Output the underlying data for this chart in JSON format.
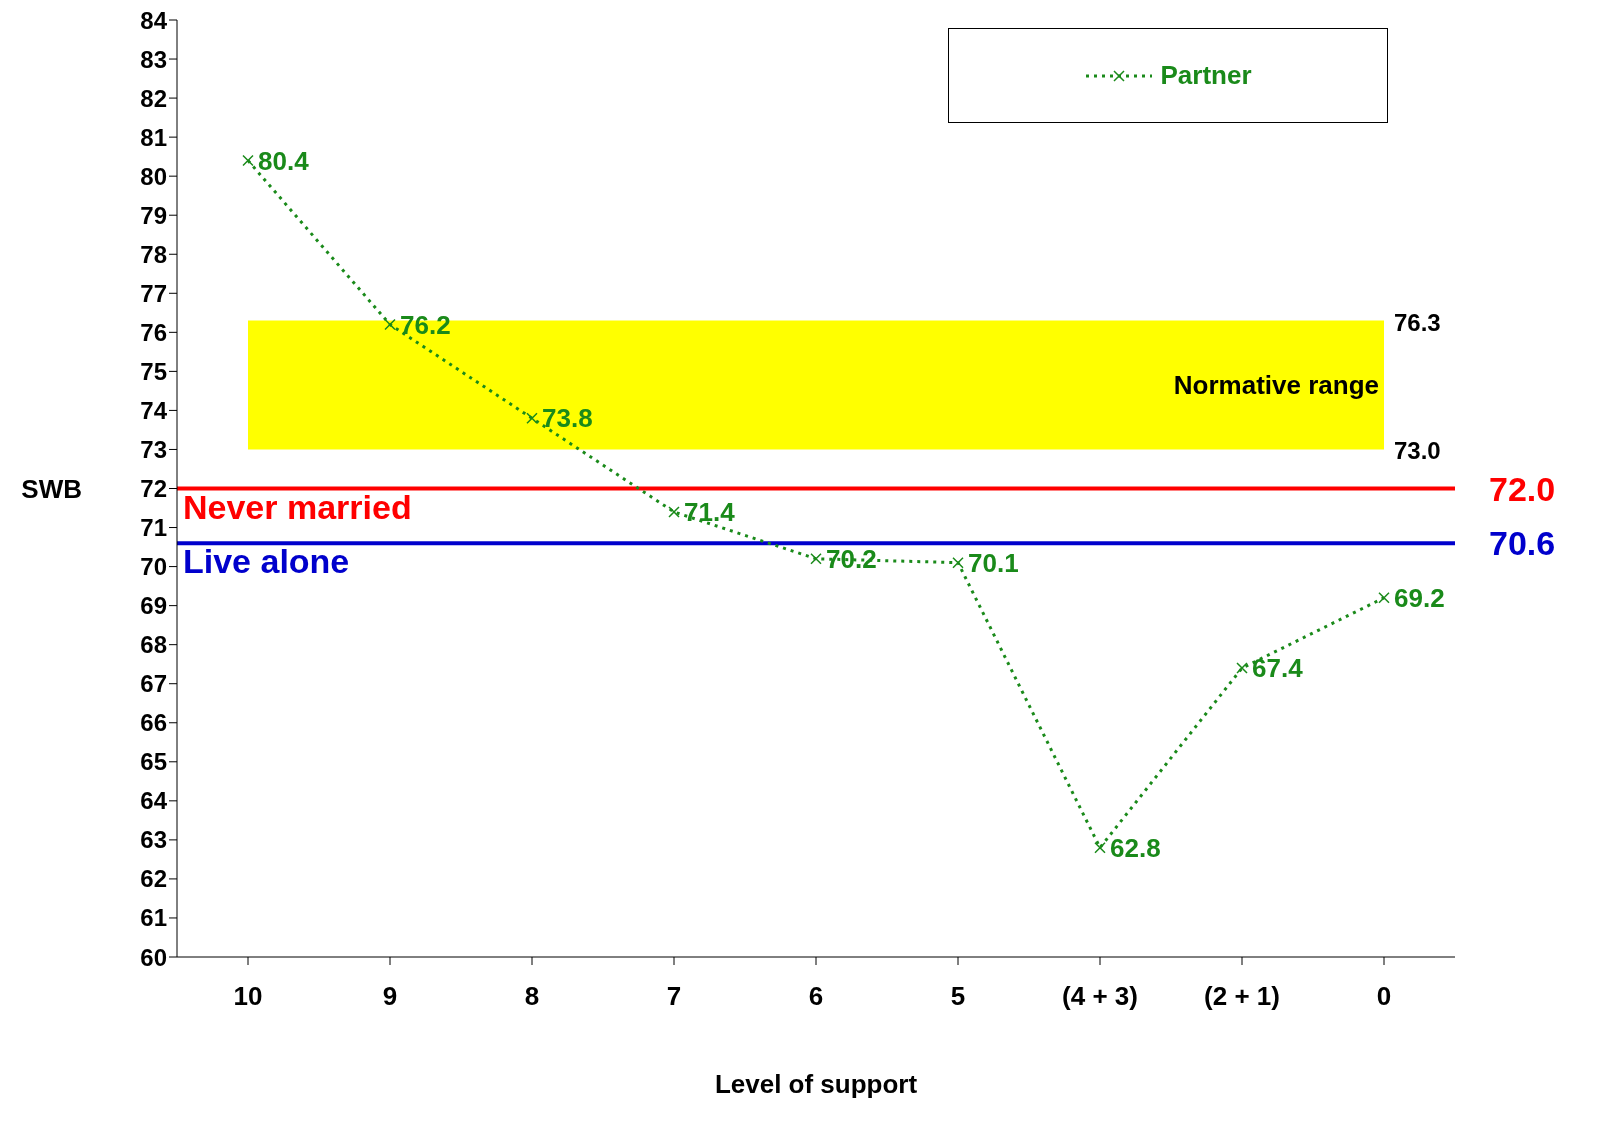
{
  "chart_data": {
    "type": "line",
    "xlabel": "Level of support",
    "ylabel": "SWB",
    "categories": [
      "10",
      "9",
      "8",
      "7",
      "6",
      "5",
      "(4 + 3)",
      "(2 + 1)",
      "0"
    ],
    "series": [
      {
        "name": "Partner",
        "color": "#1a8a1a",
        "values": [
          80.4,
          76.2,
          73.8,
          71.4,
          70.2,
          70.1,
          62.8,
          67.4,
          69.2
        ]
      }
    ],
    "ylim": [
      60,
      84
    ],
    "yticks": [
      60,
      61,
      62,
      63,
      64,
      65,
      66,
      67,
      68,
      69,
      70,
      71,
      72,
      73,
      74,
      75,
      76,
      77,
      78,
      79,
      80,
      81,
      82,
      83,
      84
    ],
    "bands": [
      {
        "axis": "y",
        "from": 73.0,
        "to": 76.3,
        "label": "Normative range",
        "color": "#ffff00"
      }
    ],
    "ref_lines": [
      {
        "axis": "y",
        "value": 72.0,
        "label": "Never married",
        "color": "#ff0000"
      },
      {
        "axis": "y",
        "value": 70.6,
        "label": "Live alone",
        "color": "#0000cc"
      }
    ],
    "annotations": [
      {
        "text": "76.3",
        "x": "0",
        "y": 76.3
      },
      {
        "text": "73.0",
        "x": "0",
        "y": 73.0
      },
      "72.0",
      "70.6"
    ],
    "data_labels": true,
    "marker": "cross",
    "line_style": "dotted",
    "legend": "top right",
    "grid": false
  }
}
